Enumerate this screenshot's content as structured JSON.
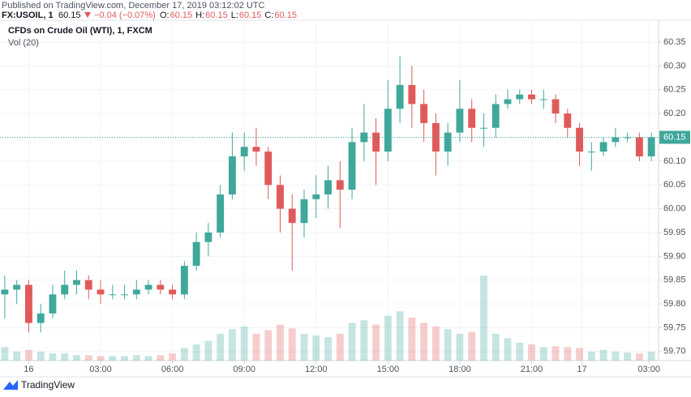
{
  "header": {
    "published": "Published on TradingView.com, December 17, 2019 03:12:02 UTC",
    "symbol": "FX:USOIL, 1",
    "price": "60.15",
    "change": "−0.04 (−0.07%)",
    "ohlc": [
      {
        "label": "O:",
        "value": "60.15"
      },
      {
        "label": "H:",
        "value": "60.15"
      },
      {
        "label": "L:",
        "value": "60.15"
      },
      {
        "label": "C:",
        "value": "60.15"
      }
    ]
  },
  "footer": {
    "brand": "TradingView"
  },
  "chart_data": {
    "type": "candlestick",
    "title": "CFDs on Crude Oil (WTI), 1, FXCM",
    "subtitle": "Vol (20)",
    "up_color": "#3fa89b",
    "down_color": "#e05a5a",
    "grid": true,
    "x": [
      -1,
      -0.5,
      0,
      0.5,
      1,
      1.5,
      2,
      2.5,
      3,
      3.5,
      4,
      4.5,
      5,
      5.5,
      6,
      6.5,
      7,
      7.5,
      8,
      8.5,
      9,
      9.5,
      10,
      10.5,
      11,
      11.5,
      12,
      12.5,
      13,
      13.5,
      14,
      14.5,
      15,
      15.5,
      16,
      16.5,
      17,
      17.5,
      18,
      18.5,
      19,
      19.5,
      20,
      20.5,
      21,
      21.5,
      22,
      22.5,
      23,
      23.5,
      24,
      24.5,
      25,
      25.5,
      26
    ],
    "open": [
      59.82,
      59.83,
      59.84,
      59.76,
      59.78,
      59.82,
      59.84,
      59.85,
      59.83,
      59.82,
      59.82,
      59.82,
      59.83,
      59.84,
      59.83,
      59.82,
      59.88,
      59.93,
      59.95,
      60.03,
      60.11,
      60.13,
      60.12,
      60.05,
      60.0,
      59.97,
      60.02,
      60.03,
      60.06,
      60.04,
      60.14,
      60.16,
      60.12,
      60.21,
      60.26,
      60.22,
      60.18,
      60.12,
      60.16,
      60.21,
      60.17,
      60.17,
      60.22,
      60.23,
      60.24,
      60.23,
      60.23,
      60.2,
      60.17,
      60.12,
      60.12,
      60.14,
      60.15,
      60.15,
      60.11
    ],
    "high": [
      59.86,
      59.85,
      59.85,
      59.8,
      59.84,
      59.87,
      59.87,
      59.86,
      59.85,
      59.84,
      59.84,
      59.85,
      59.85,
      59.85,
      59.84,
      59.89,
      59.95,
      59.97,
      60.05,
      60.16,
      60.16,
      60.17,
      60.13,
      60.07,
      60.03,
      60.04,
      60.07,
      60.09,
      60.1,
      60.17,
      60.22,
      60.19,
      60.27,
      60.32,
      60.3,
      60.25,
      60.2,
      60.18,
      60.27,
      60.23,
      60.2,
      60.24,
      60.25,
      60.25,
      60.25,
      60.25,
      60.24,
      60.21,
      60.18,
      60.14,
      60.15,
      60.17,
      60.16,
      60.16,
      60.16
    ],
    "low": [
      59.77,
      59.8,
      59.74,
      59.74,
      59.77,
      59.81,
      59.82,
      59.81,
      59.8,
      59.81,
      59.81,
      59.81,
      59.82,
      59.82,
      59.81,
      59.81,
      59.87,
      59.9,
      59.94,
      60.02,
      60.08,
      60.09,
      60.02,
      59.95,
      59.87,
      59.94,
      59.98,
      60.0,
      59.96,
      60.02,
      60.1,
      60.05,
      60.1,
      60.18,
      60.17,
      60.14,
      60.07,
      60.09,
      60.14,
      60.14,
      60.13,
      60.15,
      60.21,
      60.22,
      60.22,
      60.21,
      60.18,
      60.15,
      60.09,
      60.08,
      60.11,
      60.13,
      60.14,
      60.1,
      60.1
    ],
    "close": [
      59.83,
      59.84,
      59.76,
      59.78,
      59.82,
      59.84,
      59.85,
      59.83,
      59.82,
      59.82,
      59.82,
      59.83,
      59.84,
      59.83,
      59.82,
      59.88,
      59.93,
      59.95,
      60.03,
      60.11,
      60.13,
      60.12,
      60.05,
      60.0,
      59.97,
      60.02,
      60.03,
      60.06,
      60.04,
      60.14,
      60.16,
      60.12,
      60.21,
      60.26,
      60.22,
      60.18,
      60.12,
      60.16,
      60.21,
      60.17,
      60.17,
      60.22,
      60.23,
      60.24,
      60.23,
      60.23,
      60.2,
      60.17,
      60.12,
      60.12,
      60.14,
      60.15,
      60.15,
      60.11,
      60.15
    ],
    "volume": [
      15,
      10,
      12,
      10,
      8,
      8,
      6,
      6,
      5,
      5,
      5,
      6,
      5,
      6,
      8,
      14,
      18,
      22,
      30,
      35,
      38,
      30,
      34,
      40,
      36,
      30,
      28,
      26,
      30,
      42,
      45,
      40,
      50,
      55,
      48,
      42,
      38,
      35,
      30,
      32,
      95,
      30,
      25,
      20,
      18,
      15,
      16,
      15,
      14,
      10,
      12,
      10,
      9,
      8,
      10
    ],
    "xlim": [
      -1.2,
      26.3
    ],
    "ylim": [
      59.681,
      60.396
    ],
    "xticks": [
      {
        "value": 0,
        "label": "16"
      },
      {
        "value": 3,
        "label": "03:00"
      },
      {
        "value": 6,
        "label": "06:00"
      },
      {
        "value": 9,
        "label": "09:00"
      },
      {
        "value": 12,
        "label": "12:00"
      },
      {
        "value": 15,
        "label": "15:00"
      },
      {
        "value": 18,
        "label": "18:00"
      },
      {
        "value": 21,
        "label": "21:00"
      },
      {
        "value": 23.1,
        "label": "17"
      },
      {
        "value": 25.9,
        "label": "03:00"
      }
    ],
    "yticks": [
      {
        "value": 59.7,
        "label": "59.70"
      },
      59.75,
      {
        "value": 59.8,
        "label": "59.80"
      },
      59.85,
      {
        "value": 59.9,
        "label": "59.90"
      },
      59.95,
      {
        "value": 60,
        "label": "60.00"
      },
      60.05,
      {
        "value": 60.1,
        "label": "60.10"
      },
      60.15,
      {
        "value": 60.2,
        "label": "60.20"
      },
      60.25,
      {
        "value": 60.3,
        "label": "60.30"
      },
      60.35
    ]
  }
}
